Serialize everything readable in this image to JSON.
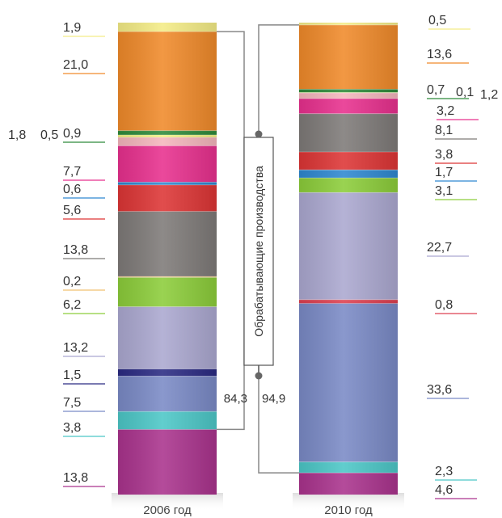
{
  "chart_data": {
    "type": "stacked-bar",
    "categories": [
      "2006 год",
      "2010 год"
    ],
    "segment_colors": [
      "#f4ec86",
      "#f08a2a",
      "#2f8a3a",
      "#f0f07a",
      "#f5b6bd",
      "#e8308e",
      "#2e88d0",
      "#dd3535",
      "#7e7a78",
      "#8ccd3a",
      "#aba8d0",
      "#2a2a82",
      "#7a8ac6",
      "#4cc7c7",
      "#aa338d"
    ],
    "series_2006": {
      "values": [
        1.9,
        21.0,
        0.9,
        0.5,
        1.8,
        7.7,
        0.6,
        5.6,
        13.8,
        0.2,
        6.2,
        13.2,
        1.5,
        7.5,
        3.8,
        13.8
      ],
      "colors": [
        "#f4ec86",
        "#f08a2a",
        "#2f8a3a",
        "#f0f07a",
        "#f5b6bd",
        "#e8308e",
        "#2e88d0",
        "#dd3535",
        "#7e7a78",
        "#f0c070",
        "#8ccd3a",
        "#aba8d0",
        "#2a2a82",
        "#7a8ac6",
        "#4cc7c7",
        "#aa338d"
      ],
      "labels": [
        "1,9",
        "21,0",
        "0,9",
        "0,5",
        "1,8",
        "7,7",
        "0,6",
        "5,6",
        "13,8",
        "0,2",
        "6,2",
        "13,2",
        "1,5",
        "7,5",
        "3,8",
        "13,8"
      ]
    },
    "series_2010": {
      "values": [
        0.5,
        13.6,
        0.7,
        0.1,
        1.2,
        3.2,
        8.1,
        3.8,
        1.7,
        3.1,
        22.7,
        0.8,
        33.6,
        2.3,
        4.6
      ],
      "colors": [
        "#f4ec86",
        "#f08a2a",
        "#2f8a3a",
        "#f0f07a",
        "#f5b6bd",
        "#e8308e",
        "#7e7a78",
        "#dd3535",
        "#2e88d0",
        "#8ccd3a",
        "#aba8d0",
        "#dd4050",
        "#7a8ac6",
        "#4cc7c7",
        "#aa338d"
      ],
      "labels": [
        "0,5",
        "13,6",
        "0,7",
        "0,1",
        "1,2",
        "3,2",
        "8,1",
        "3,8",
        "1,7",
        "3,1",
        "22,7",
        "0,8",
        "33,6",
        "2,3",
        "4,6"
      ]
    },
    "manufacturing": {
      "label": "Обрабатывающие производства",
      "value_2006": "84,3",
      "value_2010": "94,9"
    }
  }
}
